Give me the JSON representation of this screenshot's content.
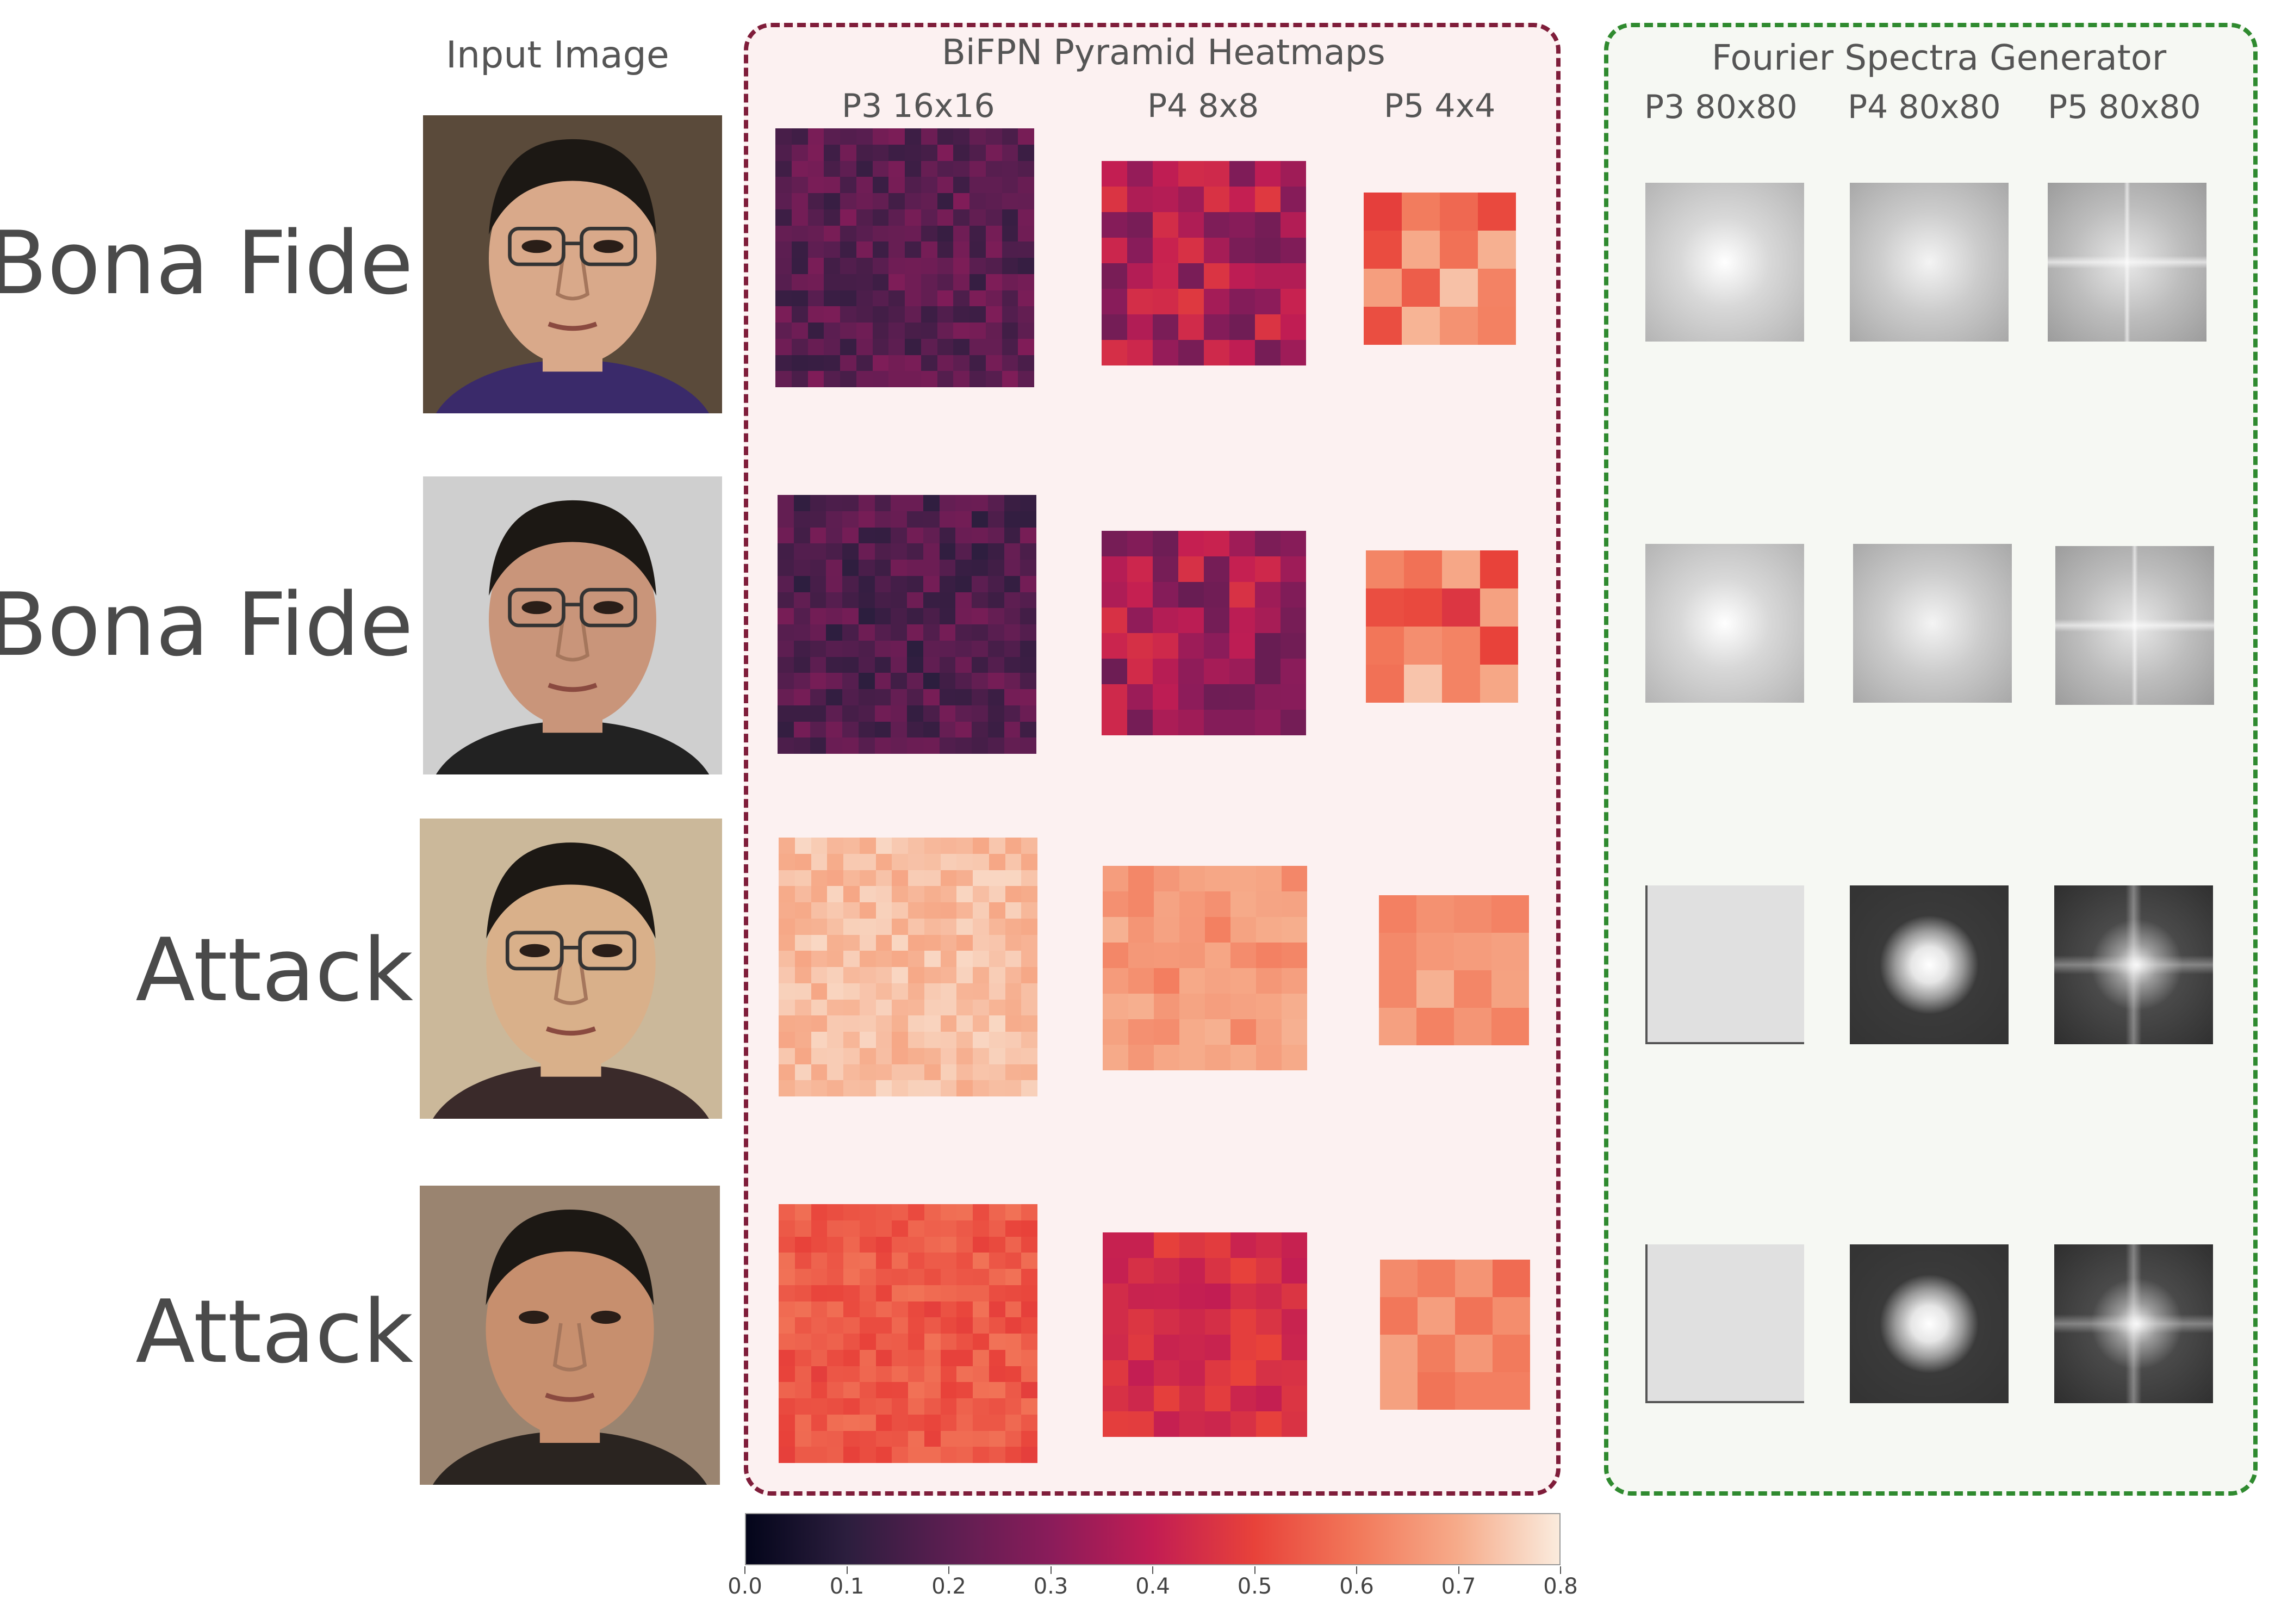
{
  "headers": {
    "input": "Input Image",
    "bifpn": "BiFPN Pyramid Heatmaps",
    "fourier": "Fourier Spectra Generator"
  },
  "bifpn_columns": [
    "P3 16x16",
    "P4 8x8",
    "P5 4x4"
  ],
  "fourier_columns": [
    "P3 80x80",
    "P4 80x80",
    "P5 80x80"
  ],
  "rows": [
    {
      "label": "Bona Fide"
    },
    {
      "label": "Bona Fide"
    },
    {
      "label": "Attack"
    },
    {
      "label": "Attack"
    }
  ],
  "colorbar": {
    "min": 0.0,
    "max": 0.8,
    "ticks": [
      "0.0",
      "0.1",
      "0.2",
      "0.3",
      "0.4",
      "0.5",
      "0.6",
      "0.7",
      "0.8"
    ],
    "colormap": [
      "#03051a",
      "#2c1e3e",
      "#5c1e51",
      "#8a1c5a",
      "#c21d53",
      "#e8423a",
      "#f2785a",
      "#f6ab8a",
      "#faebdd"
    ]
  },
  "colors": {
    "bifpn_border": "#7f1d3a",
    "fourier_border": "#2f8a2f"
  }
}
